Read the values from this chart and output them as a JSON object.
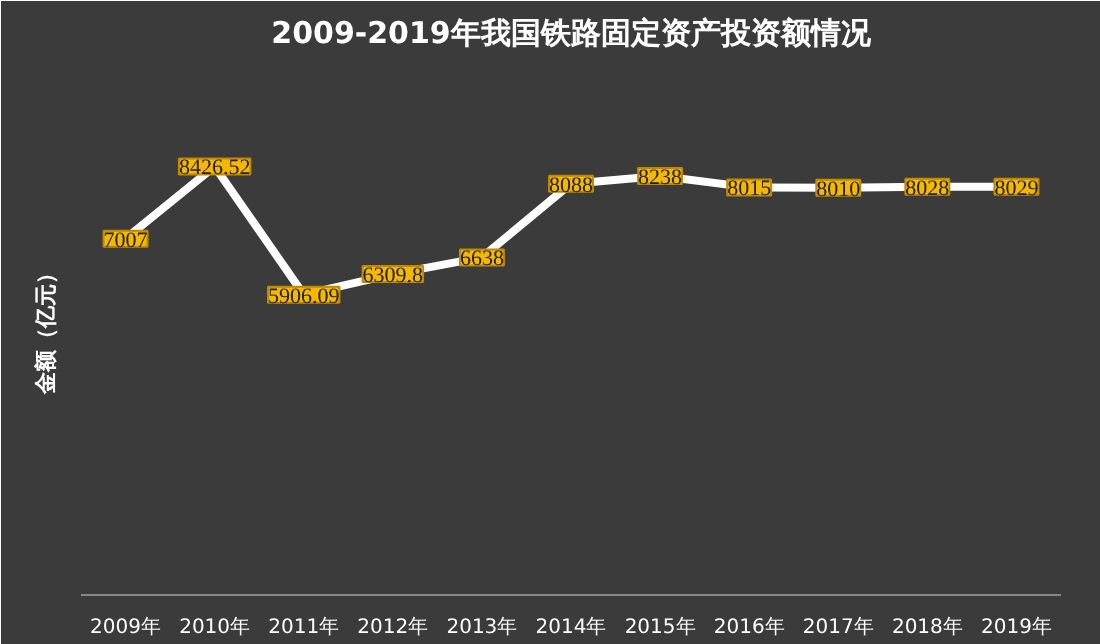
{
  "chart_data": {
    "type": "line",
    "title": "2009-2019年我国铁路固定资产投资额情况",
    "ylabel": "金额（亿元）",
    "categories": [
      "2009年",
      "2010年",
      "2011年",
      "2012年",
      "2013年",
      "2014年",
      "2015年",
      "2016年",
      "2017年",
      "2018年",
      "2019年"
    ],
    "series": [
      {
        "color": "#ffffff",
        "values": [
          7007,
          8426.52,
          5906.09,
          6309.8,
          6638,
          8088,
          8238,
          8015,
          8010,
          8028,
          8029
        ]
      }
    ],
    "ylim": [
      0,
      10500
    ],
    "data_labels": true,
    "grid": false,
    "tick_labels": "x",
    "line_style": "solid"
  }
}
